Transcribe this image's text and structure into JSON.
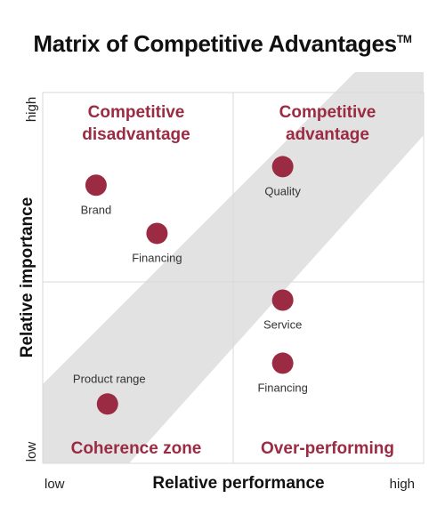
{
  "title": {
    "text": "Matrix of Competitive Advantages",
    "trademark": "TM"
  },
  "colors": {
    "accent": "#9b2b43",
    "band": "#e2e2e2",
    "grid": "#d8d8d8"
  },
  "axes": {
    "x_title": "Relative performance",
    "y_title": "Relative importance",
    "x_low": "low",
    "x_high": "high",
    "y_low": "low",
    "y_high": "high"
  },
  "quadrants": {
    "top_left": [
      "Competitive",
      "disadvantage"
    ],
    "top_right": [
      "Competitive",
      "advantage"
    ],
    "bottom_left": [
      "Coherence zone"
    ],
    "bottom_right": [
      "Over-performing"
    ]
  },
  "points": [
    {
      "label": "Brand",
      "performance": 0.14,
      "importance": 0.75
    },
    {
      "label": "Financing",
      "performance": 0.3,
      "importance": 0.62
    },
    {
      "label": "Quality",
      "performance": 0.63,
      "importance": 0.8
    },
    {
      "label": "Service",
      "performance": 0.63,
      "importance": 0.44
    },
    {
      "label": "Financing",
      "performance": 0.63,
      "importance": 0.27
    },
    {
      "label": "Product range",
      "performance": 0.17,
      "importance": 0.16
    }
  ]
}
